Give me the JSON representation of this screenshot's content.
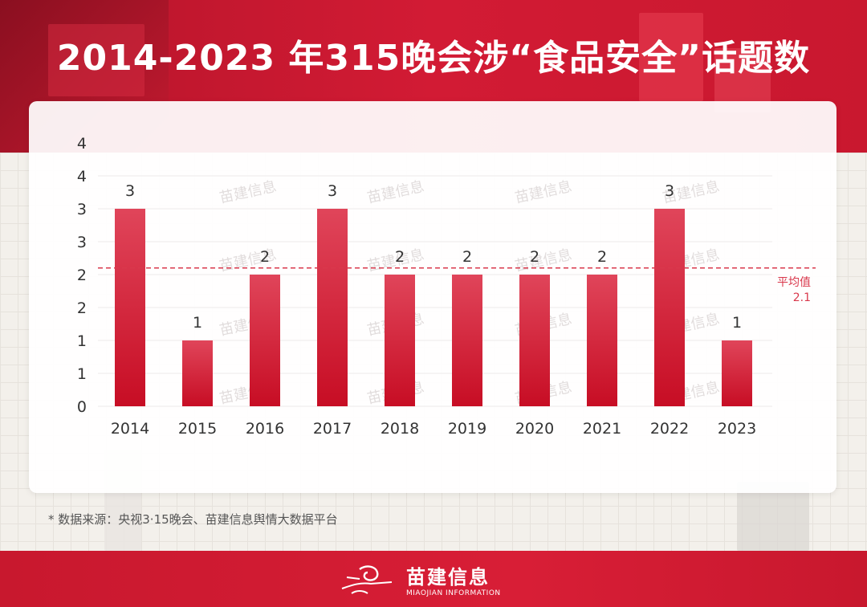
{
  "title": "2014-2023 年315晚会涉“食品安全”话题数",
  "source_note": "* 数据来源：央视3·15晚会、苗建信息舆情大数据平台",
  "brand": {
    "name": "苗建信息",
    "subtitle": "MIAOJIAN INFORMATION",
    "logo_icon": "miaojian-logo-icon"
  },
  "colors": {
    "bar_top": "#e0455a",
    "bar_bottom": "#c70d24",
    "average_line": "#d9384c",
    "header_red": "#d21b34"
  },
  "chart_data": {
    "type": "bar",
    "title": "2014-2023 年315晚会涉“食品安全”话题数",
    "xlabel": "",
    "ylabel": "",
    "categories": [
      "2014",
      "2015",
      "2016",
      "2017",
      "2018",
      "2019",
      "2020",
      "2021",
      "2022",
      "2023"
    ],
    "values": [
      3,
      1,
      2,
      3,
      2,
      2,
      2,
      2,
      3,
      1
    ],
    "data_labels": [
      "3",
      "1",
      "2",
      "3",
      "2",
      "2",
      "2",
      "2",
      "3",
      "1"
    ],
    "ylim": [
      0,
      4
    ],
    "yticks": [
      {
        "value": 0,
        "label": "0"
      },
      {
        "value": 0.5,
        "label": "1"
      },
      {
        "value": 1,
        "label": "1"
      },
      {
        "value": 1.5,
        "label": "2"
      },
      {
        "value": 2,
        "label": "2"
      },
      {
        "value": 2.5,
        "label": "3"
      },
      {
        "value": 3,
        "label": "3"
      },
      {
        "value": 3.5,
        "label": "4"
      }
    ],
    "average": {
      "value": 2.1,
      "label": "平均值",
      "value_label": "2.1"
    },
    "grid": true,
    "legend": "none"
  }
}
